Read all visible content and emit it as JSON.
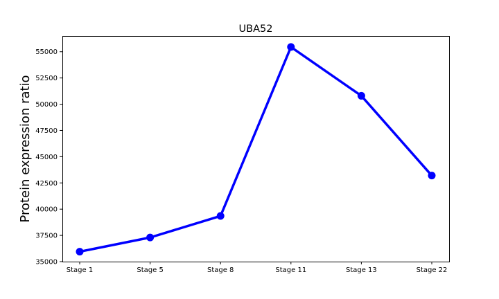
{
  "chart_data": {
    "type": "line",
    "title": "UBA52",
    "xlabel": "",
    "ylabel": "Protein expression ratio",
    "categories": [
      "Stage 1",
      "Stage 5",
      "Stage 8",
      "Stage 11",
      "Stage 13",
      "Stage 22"
    ],
    "series": [
      {
        "values": [
          35950,
          37300,
          39350,
          55450,
          50800,
          43200
        ]
      }
    ],
    "ylim": [
      35000,
      56500
    ],
    "yticks": [
      35000,
      37500,
      40000,
      42500,
      45000,
      47500,
      50000,
      52500,
      55000
    ],
    "ytick_labels": [
      "35000",
      "37500",
      "40000",
      "42500",
      "45000",
      "47500",
      "50000",
      "52500",
      "55000"
    ],
    "grid": false,
    "line_color": "#0000ff",
    "marker": "circle"
  }
}
